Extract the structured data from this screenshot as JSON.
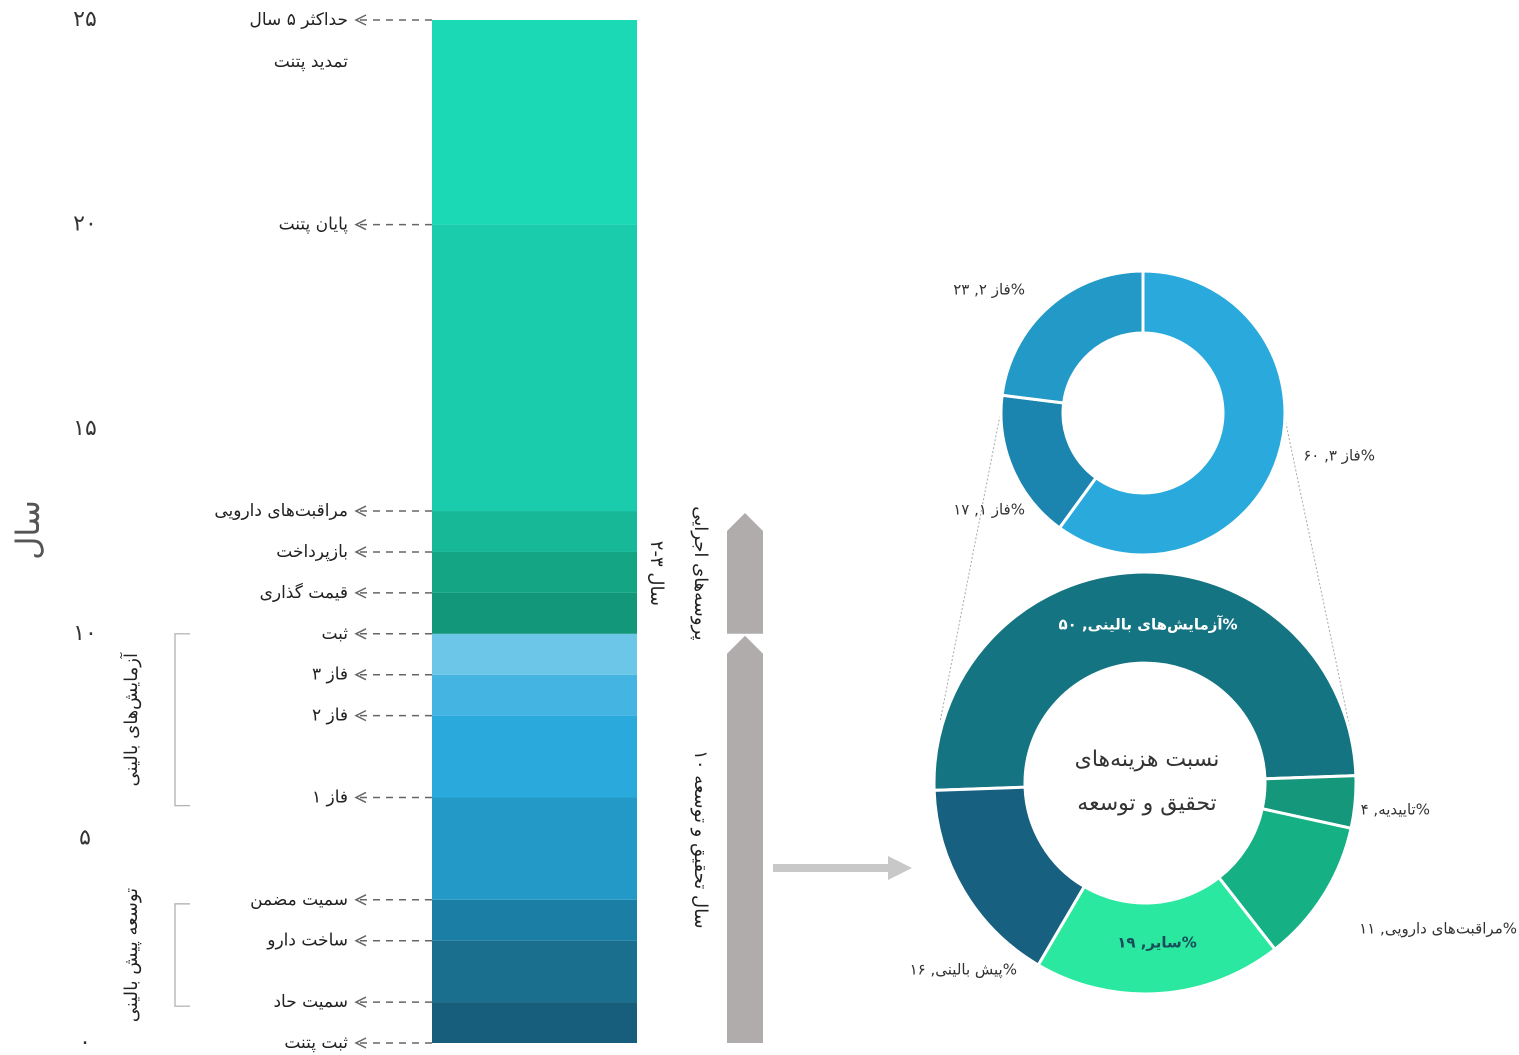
{
  "chart_data": {
    "type": "timeline-donut",
    "axis": {
      "label": "سال",
      "lim": [
        0,
        25
      ],
      "ticks": [
        {
          "value": 0,
          "label": "۰"
        },
        {
          "value": 5,
          "label": "۵"
        },
        {
          "value": 10,
          "label": "۱۰"
        },
        {
          "value": 15,
          "label": "۱۵"
        },
        {
          "value": 20,
          "label": "۲۰"
        },
        {
          "value": 25,
          "label": "۲۵"
        }
      ]
    },
    "stages": [
      {
        "label": "ثبت پتنت",
        "year": 0
      },
      {
        "label": "سمیت حاد",
        "year": 1
      },
      {
        "label": "ساخت دارو",
        "year": 2.5
      },
      {
        "label": "سمیت مضمن",
        "year": 3.5
      },
      {
        "label": "فاز ۱",
        "year": 6
      },
      {
        "label": "فاز ۲",
        "year": 8
      },
      {
        "label": "فاز ۳",
        "year": 9
      },
      {
        "label": "ثبت",
        "year": 10
      },
      {
        "label": "قیمت گذاری",
        "year": 11
      },
      {
        "label": "بازپرداخت",
        "year": 12
      },
      {
        "label": "مراقبت‌های دارویی",
        "year": 13
      },
      {
        "label": "پایان پتنت",
        "year": 20
      },
      {
        "label": "حداکثر ۵ سال",
        "sublabel": "تمدید پتنت",
        "year": 25
      }
    ],
    "bar_colors": [
      "#175e7c",
      "#1a6f8f",
      "#1b7fa5",
      "#2399c7",
      "#29a9dc",
      "#44b4e3",
      "#6bc6e8",
      "#12977a",
      "#14a585",
      "#17b898",
      "#1acbac",
      "#1cd9b5"
    ],
    "groups": [
      {
        "label": "آزمایش‌های بالینی",
        "from": 5.8,
        "to": 10
      },
      {
        "label": "توسعه پیش بالینی",
        "from": 0.9,
        "to": 3.4
      }
    ],
    "spans": [
      {
        "lines": [
          "۱۰ سال تحقیق و توسعه"
        ],
        "from": 0,
        "to": 10
      },
      {
        "lines": [
          "پروسه‌های اجرایی",
          "۲-۳ سال"
        ],
        "from": 10,
        "to": 13
      }
    ],
    "small_donut": {
      "slices": [
        {
          "name": "فاز ۳",
          "value": 60,
          "value_label": "فاز ۳, ۶۰%",
          "color": "#29a9dc"
        },
        {
          "name": "فاز ۱",
          "value": 17,
          "value_label": "فاز ۱, ۱۷%",
          "color": "#1b85b0"
        },
        {
          "name": "فاز ۲",
          "value": 23,
          "value_label": "فاز ۲, ۲۳%",
          "color": "#2399c7"
        }
      ]
    },
    "big_donut": {
      "title": [
        "نسبت هزینه‌های",
        "تحقیق و توسعه"
      ],
      "slices": [
        {
          "name": "آزمایش‌های بالینی",
          "value": 50,
          "value_label": "آزمایش‌های بالینی, ۵۰%",
          "color": "#147482"
        },
        {
          "name": "تاییدیه",
          "value": 4,
          "value_label": "تاییدیه, ۴%",
          "color": "#14977a"
        },
        {
          "name": "مراقبت‌های دارویی",
          "value": 11,
          "value_label": "مراقبت‌های دارویی, ۱۱%",
          "color": "#15b083"
        },
        {
          "name": "سایر",
          "value": 19,
          "value_label": "سایر, ۱۹%",
          "color": "#2ae89f"
        },
        {
          "name": "پیش بالینی",
          "value": 16,
          "value_label": "پیش بالینی, ۱۶%",
          "color": "#17607f"
        }
      ]
    }
  }
}
